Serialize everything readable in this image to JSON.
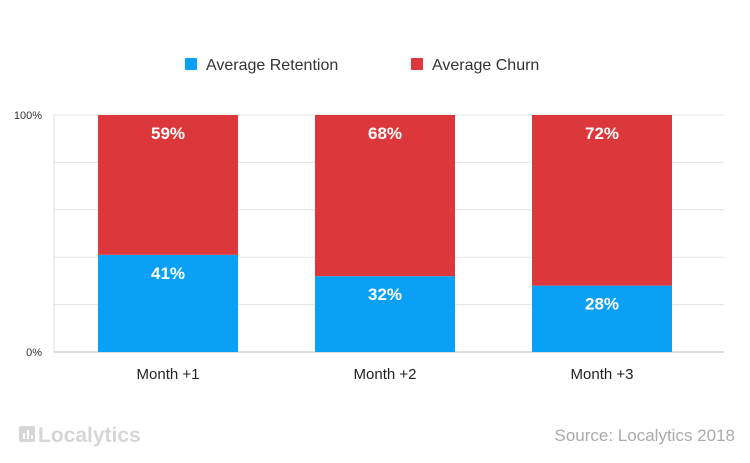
{
  "chart_data": {
    "type": "bar",
    "stacked": true,
    "categories": [
      "Month +1",
      "Month +2",
      "Month +3"
    ],
    "series": [
      {
        "name": "Average Retention",
        "color": "#0aa0f5",
        "values": [
          41,
          32,
          28
        ]
      },
      {
        "name": "Average Churn",
        "color": "#dc383c",
        "values": [
          59,
          68,
          72
        ]
      }
    ],
    "data_labels": [
      [
        "41%",
        "32%",
        "28%"
      ],
      [
        "59%",
        "68%",
        "72%"
      ]
    ],
    "ylim": [
      0,
      100
    ],
    "y_ticks": [
      "0%",
      "100%"
    ],
    "grid": true,
    "legend": "top-center"
  },
  "footer": {
    "logo_text": "Localytics",
    "source": "Source: Localytics 2018"
  }
}
